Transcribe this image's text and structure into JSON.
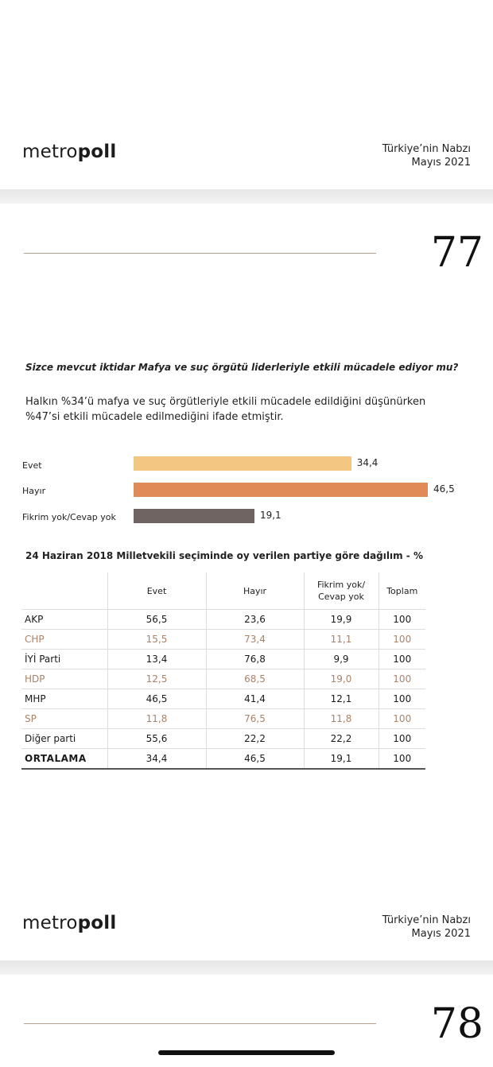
{
  "page1": {
    "logo": {
      "pre": "metro",
      "bold": "poll"
    },
    "header_line1": "Türkiye’nin Nabzı",
    "header_line2": "Mayıs 2021",
    "page_number": "77"
  },
  "question": "Sizce mevcut iktidar Mafya ve suç örgütü liderleriyle etkili mücadele ediyor mu?",
  "intro": {
    "line1": "Halkın %34’ü mafya ve suç örgütleriyle etkili mücadele edildiğini düşünürken",
    "line2": "%47’si  etkili mücadele edilmediğini ifade etmiştir."
  },
  "chart_data": {
    "type": "bar",
    "orientation": "horizontal",
    "categories": [
      "Evet",
      "Hayır",
      "Fikrim yok/Cevap yok"
    ],
    "values": [
      34.4,
      46.5,
      19.1
    ],
    "value_labels": [
      "34,4",
      "46,5",
      "19,1"
    ],
    "colors": [
      "#f3c681",
      "#e08a57",
      "#6f6461"
    ],
    "xlim": [
      0,
      46.5
    ]
  },
  "table": {
    "title": "24 Haziran 2018 Milletvekili seçiminde oy verilen partiye göre dağılım - %",
    "headers": [
      "Evet",
      "Hayır",
      "Fikrim yok/\nCevap yok",
      "Toplam"
    ],
    "header_fikrim_l1": "Fikrim yok/",
    "header_fikrim_l2": "Cevap yok",
    "rows": [
      {
        "name": "AKP",
        "evet": "56,5",
        "hayir": "23,6",
        "fikrim": "19,9",
        "toplam": "100"
      },
      {
        "name": "CHP",
        "evet": "15,5",
        "hayir": "73,4",
        "fikrim": "11,1",
        "toplam": "100"
      },
      {
        "name": "İYİ Parti",
        "evet": "13,4",
        "hayir": "76,8",
        "fikrim": "9,9",
        "toplam": "100"
      },
      {
        "name": "HDP",
        "evet": "12,5",
        "hayir": "68,5",
        "fikrim": "19,0",
        "toplam": "100"
      },
      {
        "name": "MHP",
        "evet": "46,5",
        "hayir": "41,4",
        "fikrim": "12,1",
        "toplam": "100"
      },
      {
        "name": "SP",
        "evet": "11,8",
        "hayir": "76,5",
        "fikrim": "11,8",
        "toplam": "100"
      },
      {
        "name": "Diğer parti",
        "evet": "55,6",
        "hayir": "22,2",
        "fikrim": "22,2",
        "toplam": "100"
      },
      {
        "name": "ORTALAMA",
        "evet": "34,4",
        "hayir": "46,5",
        "fikrim": "19,1",
        "toplam": "100"
      }
    ],
    "alt_row_color": "#a8836a"
  },
  "page2": {
    "logo": {
      "pre": "metro",
      "bold": "poll"
    },
    "header_line1": "Türkiye’nin Nabzı",
    "header_line2": "Mayıs 2021",
    "page_number": "78"
  }
}
